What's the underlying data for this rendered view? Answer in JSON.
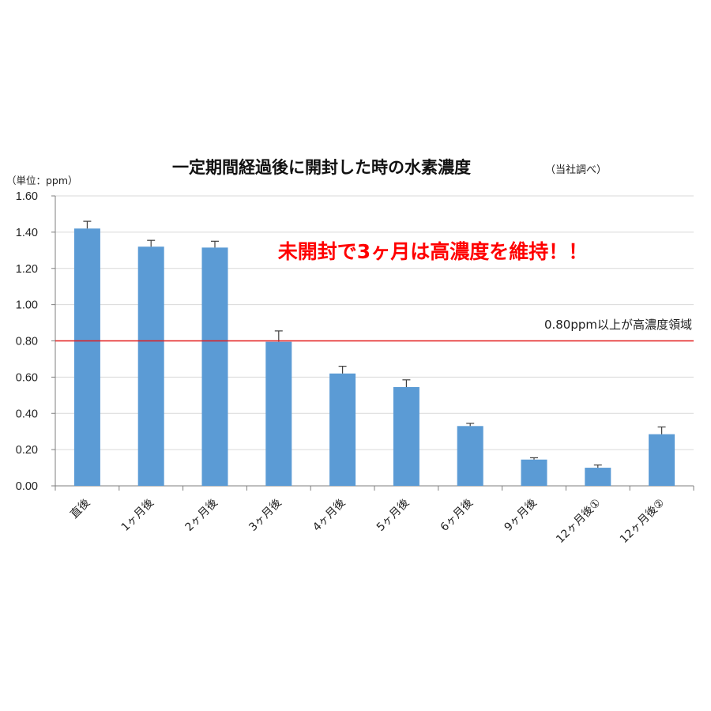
{
  "chart_data": {
    "type": "bar",
    "title": "一定期間経過後に開封した時の水素濃度",
    "title_note": "（当社調べ）",
    "unit_label": "（単位：ppm）",
    "categories": [
      "直後",
      "1ヶ月後",
      "2ヶ月後",
      "3ヶ月後",
      "4ヶ月後",
      "5ヶ月後",
      "6ヶ月後",
      "9ヶ月後",
      "12ヶ月後①",
      "12ヶ月後②"
    ],
    "values": [
      1.42,
      1.32,
      1.315,
      0.795,
      0.62,
      0.545,
      0.33,
      0.145,
      0.1,
      0.285
    ],
    "error_upper": [
      1.46,
      1.355,
      1.35,
      0.855,
      0.66,
      0.585,
      0.345,
      0.155,
      0.115,
      0.325
    ],
    "ylim": [
      0,
      1.6
    ],
    "yticks": [
      "0.00",
      "0.20",
      "0.40",
      "0.60",
      "0.80",
      "1.00",
      "1.20",
      "1.40",
      "1.60"
    ],
    "grid": true,
    "bar_color": "#5b9bd5",
    "threshold": {
      "value": 0.8,
      "color": "#e31b1b",
      "label": "0.80ppm以上が高濃度領域"
    },
    "callout": {
      "text": "未開封で3ヶ月は高濃度を維持！！",
      "color": "#ff0000"
    }
  }
}
